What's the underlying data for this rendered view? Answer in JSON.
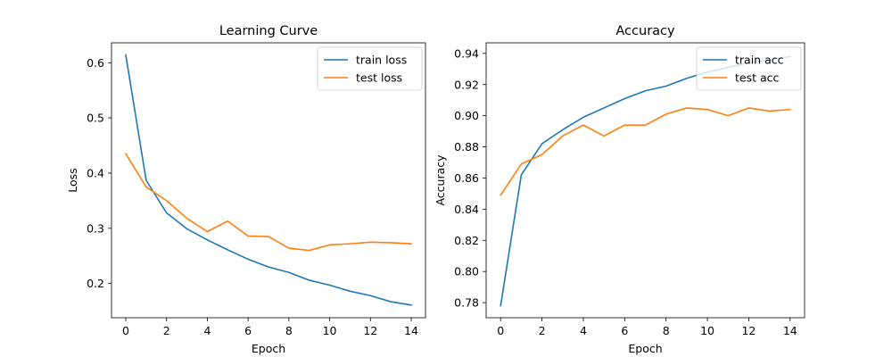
{
  "chart_data": [
    {
      "type": "line",
      "title": "Learning Curve",
      "xlabel": "Epoch",
      "ylabel": "Loss",
      "xlim": [
        -0.7,
        14.7
      ],
      "ylim": [
        0.138,
        0.636
      ],
      "xticks": [
        0,
        2,
        4,
        6,
        8,
        10,
        12,
        14
      ],
      "xtick_labels": [
        "0",
        "2",
        "4",
        "6",
        "8",
        "10",
        "12",
        "14"
      ],
      "yticks": [
        0.2,
        0.3,
        0.4,
        0.5,
        0.6
      ],
      "ytick_labels": [
        "0.2",
        "0.3",
        "0.4",
        "0.5",
        "0.6"
      ],
      "grid": false,
      "legend_position": "top-right",
      "x": [
        0,
        1,
        2,
        3,
        4,
        5,
        6,
        7,
        8,
        9,
        10,
        11,
        12,
        13,
        14
      ],
      "series": [
        {
          "name": "train loss",
          "color": "#1f77b4",
          "values": [
            0.614,
            0.387,
            0.328,
            0.299,
            0.279,
            0.261,
            0.244,
            0.23,
            0.22,
            0.206,
            0.197,
            0.186,
            0.178,
            0.167,
            0.161
          ]
        },
        {
          "name": "test loss",
          "color": "#ff7f0e",
          "values": [
            0.435,
            0.375,
            0.35,
            0.318,
            0.294,
            0.313,
            0.286,
            0.285,
            0.264,
            0.26,
            0.27,
            0.272,
            0.275,
            0.274,
            0.272
          ]
        }
      ]
    },
    {
      "type": "line",
      "title": "Accuracy",
      "xlabel": "Epoch",
      "ylabel": "Accuracy",
      "xlim": [
        -0.7,
        14.7
      ],
      "ylim": [
        0.7703,
        0.9468
      ],
      "xticks": [
        0,
        2,
        4,
        6,
        8,
        10,
        12,
        14
      ],
      "xtick_labels": [
        "0",
        "2",
        "4",
        "6",
        "8",
        "10",
        "12",
        "14"
      ],
      "yticks": [
        0.78,
        0.8,
        0.82,
        0.84,
        0.86,
        0.88,
        0.9,
        0.92,
        0.94
      ],
      "ytick_labels": [
        "0.78",
        "0.80",
        "0.82",
        "0.84",
        "0.86",
        "0.88",
        "0.90",
        "0.92",
        "0.94"
      ],
      "grid": false,
      "legend_position": "top-right",
      "x": [
        0,
        1,
        2,
        3,
        4,
        5,
        6,
        7,
        8,
        9,
        10,
        11,
        12,
        13,
        14
      ],
      "series": [
        {
          "name": "train acc",
          "color": "#1f77b4",
          "values": [
            0.778,
            0.862,
            0.882,
            0.891,
            0.899,
            0.905,
            0.911,
            0.916,
            0.919,
            0.924,
            0.928,
            0.931,
            0.934,
            0.936,
            0.938
          ]
        },
        {
          "name": "test acc",
          "color": "#ff7f0e",
          "values": [
            0.849,
            0.869,
            0.875,
            0.887,
            0.894,
            0.887,
            0.894,
            0.894,
            0.901,
            0.905,
            0.904,
            0.9,
            0.905,
            0.903,
            0.904
          ]
        }
      ]
    }
  ]
}
